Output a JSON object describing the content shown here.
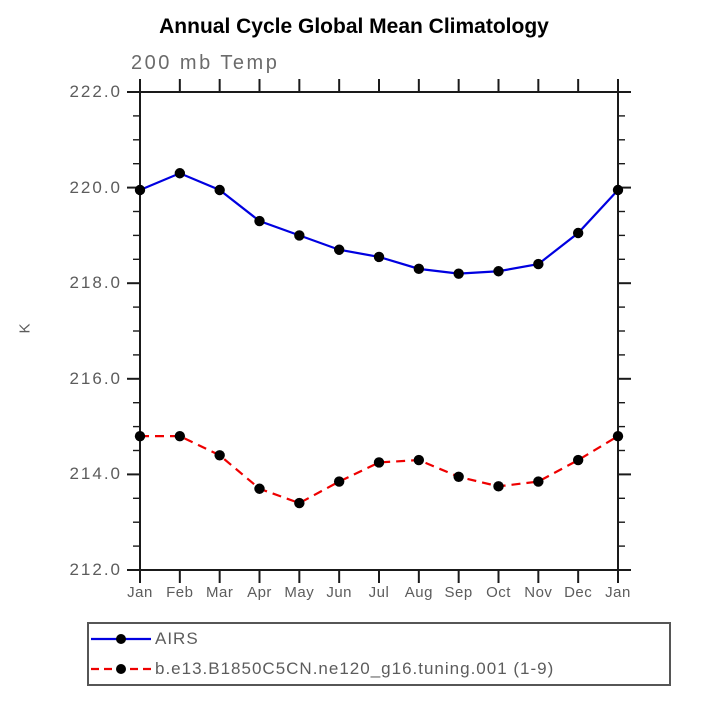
{
  "title": "Annual Cycle Global Mean Climatology",
  "chart_data": {
    "type": "line",
    "title": "Annual Cycle Global Mean Climatology",
    "subtitle": "200 mb Temp",
    "ylabel": "K",
    "ylim": [
      212.0,
      222.0
    ],
    "ytick_values": [
      212,
      214,
      216,
      218,
      220,
      222
    ],
    "ytick_labels": [
      "212.0",
      "214.0",
      "216.0",
      "218.0",
      "220.0",
      "222.0"
    ],
    "minor_tick_step": 0.5,
    "grid": "off",
    "legend_position": "bottom-left",
    "categories": [
      "Jan",
      "Feb",
      "Mar",
      "Apr",
      "May",
      "Jun",
      "Jul",
      "Aug",
      "Sep",
      "Oct",
      "Nov",
      "Dec",
      "Jan"
    ],
    "axis_color": "#1a1a1a",
    "label_color": "#5c5c5c",
    "series": [
      {
        "name": "AIRS",
        "color": "#0000e0",
        "style": "solid",
        "marker": "circle",
        "marker_color": "#000000",
        "values": [
          219.95,
          220.3,
          219.95,
          219.3,
          219.0,
          218.7,
          218.55,
          218.3,
          218.2,
          218.25,
          218.4,
          219.05,
          219.95
        ]
      },
      {
        "name": "b.e13.B1850C5CN.ne120_g16.tuning.001 (1-9)",
        "color": "#ee0000",
        "style": "dashed",
        "marker": "circle",
        "marker_color": "#000000",
        "values": [
          214.8,
          214.8,
          214.4,
          213.7,
          213.4,
          213.85,
          214.25,
          214.3,
          213.95,
          213.75,
          213.85,
          214.3,
          214.8
        ]
      }
    ]
  }
}
